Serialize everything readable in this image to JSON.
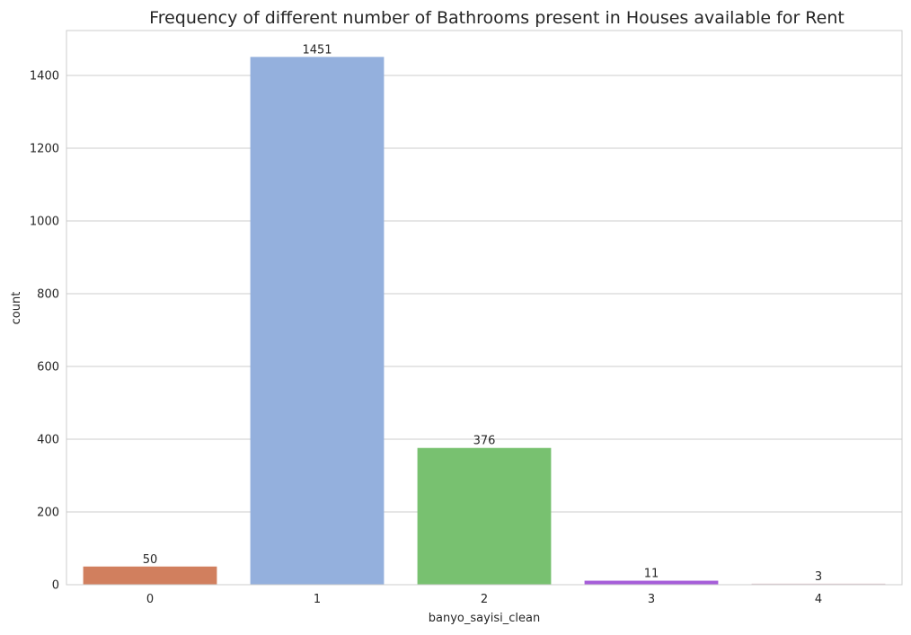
{
  "chart_data": {
    "type": "bar",
    "title": "Frequency of different number of Bathrooms present in Houses available for Rent",
    "xlabel": "banyo_sayisi_clean",
    "ylabel": "count",
    "categories": [
      "0",
      "1",
      "2",
      "3",
      "4"
    ],
    "values": [
      50,
      1451,
      376,
      11,
      3
    ],
    "data_labels": [
      "50",
      "1451",
      "376",
      "11",
      "3"
    ],
    "colors": [
      "#d17f5e",
      "#94b0dd",
      "#78c170",
      "#a65dd9",
      "#e1c9cf"
    ],
    "ylim": [
      0,
      1523.55
    ],
    "yticks": [
      0,
      200,
      400,
      600,
      800,
      1000,
      1200,
      1400
    ],
    "ytick_labels": [
      "0",
      "200",
      "400",
      "600",
      "800",
      "1000",
      "1200",
      "1400"
    ],
    "grid": "horizontal",
    "style": "whitegrid",
    "grid_color": "#cccccc",
    "spine_color": "#cccccc"
  }
}
